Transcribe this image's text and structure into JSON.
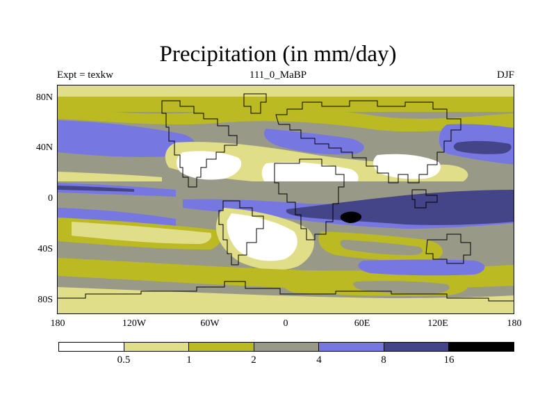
{
  "title": "Precipitation (in mm/day)",
  "subtitle": {
    "left": "Expt = texkw",
    "center": "111_0_MaBP",
    "right": "DJF"
  },
  "map": {
    "projection": "cylindrical-equidistant",
    "lon_range": [
      -180,
      180
    ],
    "lat_range": [
      -90,
      90
    ],
    "y_ticks": [
      "80N",
      "40N",
      "0",
      "40S",
      "80S"
    ],
    "x_ticks": [
      "180",
      "120W",
      "60W",
      "0",
      "60E",
      "120E",
      "180"
    ],
    "features": [
      "precipitation-contours",
      "continent-outlines"
    ]
  },
  "colorbar": {
    "labels": [
      "0.5",
      "1",
      "2",
      "4",
      "8",
      "16"
    ],
    "colors": [
      "#ffffff",
      "#e0de88",
      "#bcba22",
      "#999988",
      "#7777e2",
      "#444488",
      "#000000"
    ]
  },
  "chart_data": {
    "type": "heatmap",
    "title": "Precipitation (in mm/day)",
    "variable": "Precipitation",
    "units": "mm/day",
    "season": "DJF",
    "experiment": "texkw",
    "time": "111_0_MaBP",
    "levels": [
      0.5,
      1,
      2,
      4,
      8,
      16
    ],
    "x_ticks": [
      "180",
      "120W",
      "60W",
      "0",
      "60E",
      "120E",
      "180"
    ],
    "y_ticks": [
      "80N",
      "40N",
      "0",
      "40S",
      "80S"
    ],
    "xlim": [
      -180,
      180
    ],
    "ylim": [
      -90,
      90
    ]
  }
}
